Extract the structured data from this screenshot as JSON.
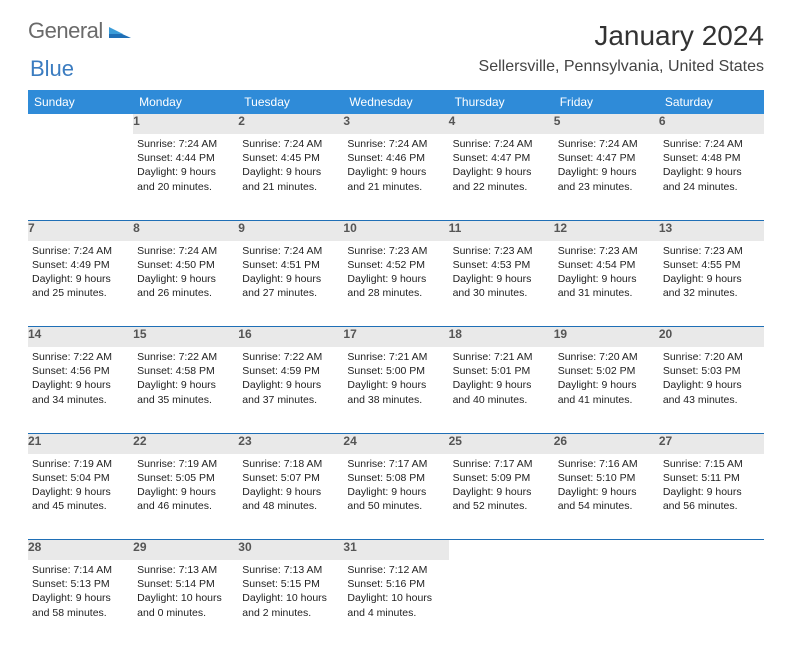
{
  "logo": {
    "word1": "General",
    "word2": "Blue"
  },
  "title": "January 2024",
  "location": "Sellersville, Pennsylvania, United States",
  "background_color": "#ffffff",
  "header_bar_color": "#2f8bd8",
  "daynum_bg_color": "#e9e9e9",
  "divider_color": "#1f6fb6",
  "title_fontsize": 28,
  "location_fontsize": 16,
  "header_fontsize": 12,
  "cell_fontsize": 10.5,
  "daynames": [
    "Sunday",
    "Monday",
    "Tuesday",
    "Wednesday",
    "Thursday",
    "Friday",
    "Saturday"
  ],
  "weeks": [
    {
      "days": [
        {
          "num": "",
          "blank": true
        },
        {
          "num": "1",
          "sunrise": "Sunrise: 7:24 AM",
          "sunset": "Sunset: 4:44 PM",
          "day1": "Daylight: 9 hours",
          "day2": "and 20 minutes."
        },
        {
          "num": "2",
          "sunrise": "Sunrise: 7:24 AM",
          "sunset": "Sunset: 4:45 PM",
          "day1": "Daylight: 9 hours",
          "day2": "and 21 minutes."
        },
        {
          "num": "3",
          "sunrise": "Sunrise: 7:24 AM",
          "sunset": "Sunset: 4:46 PM",
          "day1": "Daylight: 9 hours",
          "day2": "and 21 minutes."
        },
        {
          "num": "4",
          "sunrise": "Sunrise: 7:24 AM",
          "sunset": "Sunset: 4:47 PM",
          "day1": "Daylight: 9 hours",
          "day2": "and 22 minutes."
        },
        {
          "num": "5",
          "sunrise": "Sunrise: 7:24 AM",
          "sunset": "Sunset: 4:47 PM",
          "day1": "Daylight: 9 hours",
          "day2": "and 23 minutes."
        },
        {
          "num": "6",
          "sunrise": "Sunrise: 7:24 AM",
          "sunset": "Sunset: 4:48 PM",
          "day1": "Daylight: 9 hours",
          "day2": "and 24 minutes."
        }
      ]
    },
    {
      "days": [
        {
          "num": "7",
          "sunrise": "Sunrise: 7:24 AM",
          "sunset": "Sunset: 4:49 PM",
          "day1": "Daylight: 9 hours",
          "day2": "and 25 minutes."
        },
        {
          "num": "8",
          "sunrise": "Sunrise: 7:24 AM",
          "sunset": "Sunset: 4:50 PM",
          "day1": "Daylight: 9 hours",
          "day2": "and 26 minutes."
        },
        {
          "num": "9",
          "sunrise": "Sunrise: 7:24 AM",
          "sunset": "Sunset: 4:51 PM",
          "day1": "Daylight: 9 hours",
          "day2": "and 27 minutes."
        },
        {
          "num": "10",
          "sunrise": "Sunrise: 7:23 AM",
          "sunset": "Sunset: 4:52 PM",
          "day1": "Daylight: 9 hours",
          "day2": "and 28 minutes."
        },
        {
          "num": "11",
          "sunrise": "Sunrise: 7:23 AM",
          "sunset": "Sunset: 4:53 PM",
          "day1": "Daylight: 9 hours",
          "day2": "and 30 minutes."
        },
        {
          "num": "12",
          "sunrise": "Sunrise: 7:23 AM",
          "sunset": "Sunset: 4:54 PM",
          "day1": "Daylight: 9 hours",
          "day2": "and 31 minutes."
        },
        {
          "num": "13",
          "sunrise": "Sunrise: 7:23 AM",
          "sunset": "Sunset: 4:55 PM",
          "day1": "Daylight: 9 hours",
          "day2": "and 32 minutes."
        }
      ]
    },
    {
      "days": [
        {
          "num": "14",
          "sunrise": "Sunrise: 7:22 AM",
          "sunset": "Sunset: 4:56 PM",
          "day1": "Daylight: 9 hours",
          "day2": "and 34 minutes."
        },
        {
          "num": "15",
          "sunrise": "Sunrise: 7:22 AM",
          "sunset": "Sunset: 4:58 PM",
          "day1": "Daylight: 9 hours",
          "day2": "and 35 minutes."
        },
        {
          "num": "16",
          "sunrise": "Sunrise: 7:22 AM",
          "sunset": "Sunset: 4:59 PM",
          "day1": "Daylight: 9 hours",
          "day2": "and 37 minutes."
        },
        {
          "num": "17",
          "sunrise": "Sunrise: 7:21 AM",
          "sunset": "Sunset: 5:00 PM",
          "day1": "Daylight: 9 hours",
          "day2": "and 38 minutes."
        },
        {
          "num": "18",
          "sunrise": "Sunrise: 7:21 AM",
          "sunset": "Sunset: 5:01 PM",
          "day1": "Daylight: 9 hours",
          "day2": "and 40 minutes."
        },
        {
          "num": "19",
          "sunrise": "Sunrise: 7:20 AM",
          "sunset": "Sunset: 5:02 PM",
          "day1": "Daylight: 9 hours",
          "day2": "and 41 minutes."
        },
        {
          "num": "20",
          "sunrise": "Sunrise: 7:20 AM",
          "sunset": "Sunset: 5:03 PM",
          "day1": "Daylight: 9 hours",
          "day2": "and 43 minutes."
        }
      ]
    },
    {
      "days": [
        {
          "num": "21",
          "sunrise": "Sunrise: 7:19 AM",
          "sunset": "Sunset: 5:04 PM",
          "day1": "Daylight: 9 hours",
          "day2": "and 45 minutes."
        },
        {
          "num": "22",
          "sunrise": "Sunrise: 7:19 AM",
          "sunset": "Sunset: 5:05 PM",
          "day1": "Daylight: 9 hours",
          "day2": "and 46 minutes."
        },
        {
          "num": "23",
          "sunrise": "Sunrise: 7:18 AM",
          "sunset": "Sunset: 5:07 PM",
          "day1": "Daylight: 9 hours",
          "day2": "and 48 minutes."
        },
        {
          "num": "24",
          "sunrise": "Sunrise: 7:17 AM",
          "sunset": "Sunset: 5:08 PM",
          "day1": "Daylight: 9 hours",
          "day2": "and 50 minutes."
        },
        {
          "num": "25",
          "sunrise": "Sunrise: 7:17 AM",
          "sunset": "Sunset: 5:09 PM",
          "day1": "Daylight: 9 hours",
          "day2": "and 52 minutes."
        },
        {
          "num": "26",
          "sunrise": "Sunrise: 7:16 AM",
          "sunset": "Sunset: 5:10 PM",
          "day1": "Daylight: 9 hours",
          "day2": "and 54 minutes."
        },
        {
          "num": "27",
          "sunrise": "Sunrise: 7:15 AM",
          "sunset": "Sunset: 5:11 PM",
          "day1": "Daylight: 9 hours",
          "day2": "and 56 minutes."
        }
      ]
    },
    {
      "days": [
        {
          "num": "28",
          "sunrise": "Sunrise: 7:14 AM",
          "sunset": "Sunset: 5:13 PM",
          "day1": "Daylight: 9 hours",
          "day2": "and 58 minutes."
        },
        {
          "num": "29",
          "sunrise": "Sunrise: 7:13 AM",
          "sunset": "Sunset: 5:14 PM",
          "day1": "Daylight: 10 hours",
          "day2": "and 0 minutes."
        },
        {
          "num": "30",
          "sunrise": "Sunrise: 7:13 AM",
          "sunset": "Sunset: 5:15 PM",
          "day1": "Daylight: 10 hours",
          "day2": "and 2 minutes."
        },
        {
          "num": "31",
          "sunrise": "Sunrise: 7:12 AM",
          "sunset": "Sunset: 5:16 PM",
          "day1": "Daylight: 10 hours",
          "day2": "and 4 minutes."
        },
        {
          "num": "",
          "blank": true
        },
        {
          "num": "",
          "blank": true
        },
        {
          "num": "",
          "blank": true
        }
      ]
    }
  ]
}
